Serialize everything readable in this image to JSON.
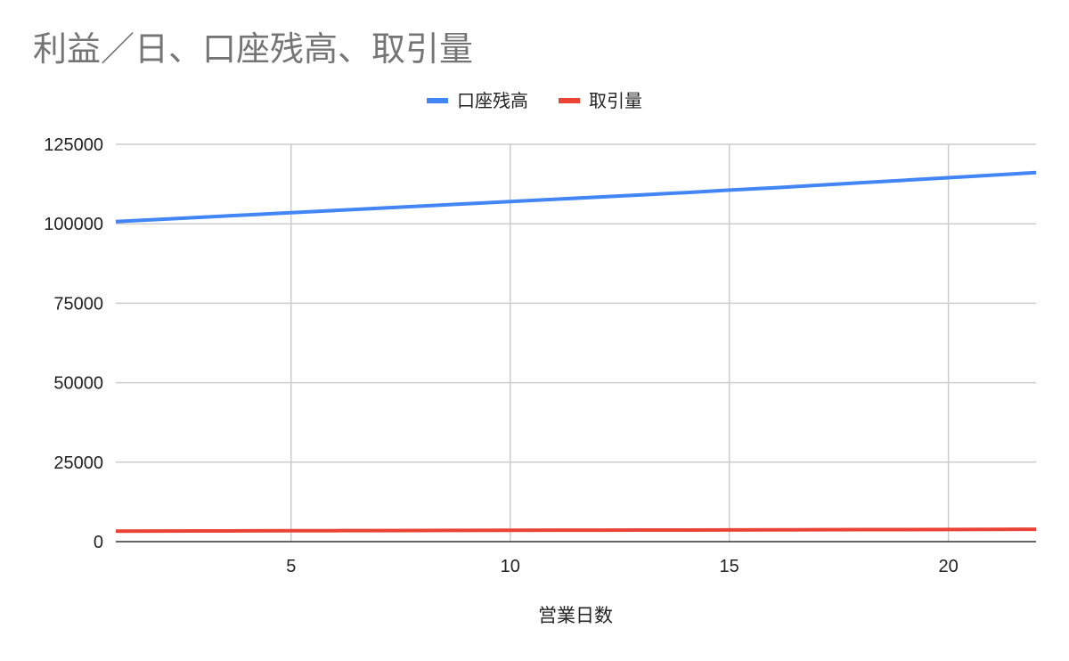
{
  "chart_data": {
    "type": "line",
    "title": "利益／日、口座残高、取引量",
    "xlabel": "営業日数",
    "ylabel": "",
    "xlim": [
      1,
      22
    ],
    "ylim": [
      0,
      125000
    ],
    "xticks": [
      5,
      10,
      15,
      20
    ],
    "yticks": [
      0,
      25000,
      50000,
      75000,
      100000,
      125000
    ],
    "grid": true,
    "legend_position": "top",
    "x": [
      1,
      2,
      3,
      4,
      5,
      6,
      7,
      8,
      9,
      10,
      11,
      12,
      13,
      14,
      15,
      16,
      17,
      18,
      19,
      20,
      21,
      22
    ],
    "series": [
      {
        "name": "口座残高",
        "color": "#4285f4",
        "values": [
          100700,
          101400,
          102100,
          102800,
          103500,
          104200,
          104900,
          105600,
          106300,
          107000,
          107700,
          108400,
          109100,
          109800,
          110600,
          111300,
          112100,
          112900,
          113700,
          114500,
          115300,
          116100
        ]
      },
      {
        "name": "取引量",
        "color": "#ea4335",
        "values": [
          3300,
          3330,
          3360,
          3390,
          3420,
          3450,
          3480,
          3510,
          3540,
          3570,
          3600,
          3620,
          3640,
          3660,
          3680,
          3710,
          3740,
          3770,
          3800,
          3830,
          3860,
          3900
        ]
      }
    ]
  }
}
